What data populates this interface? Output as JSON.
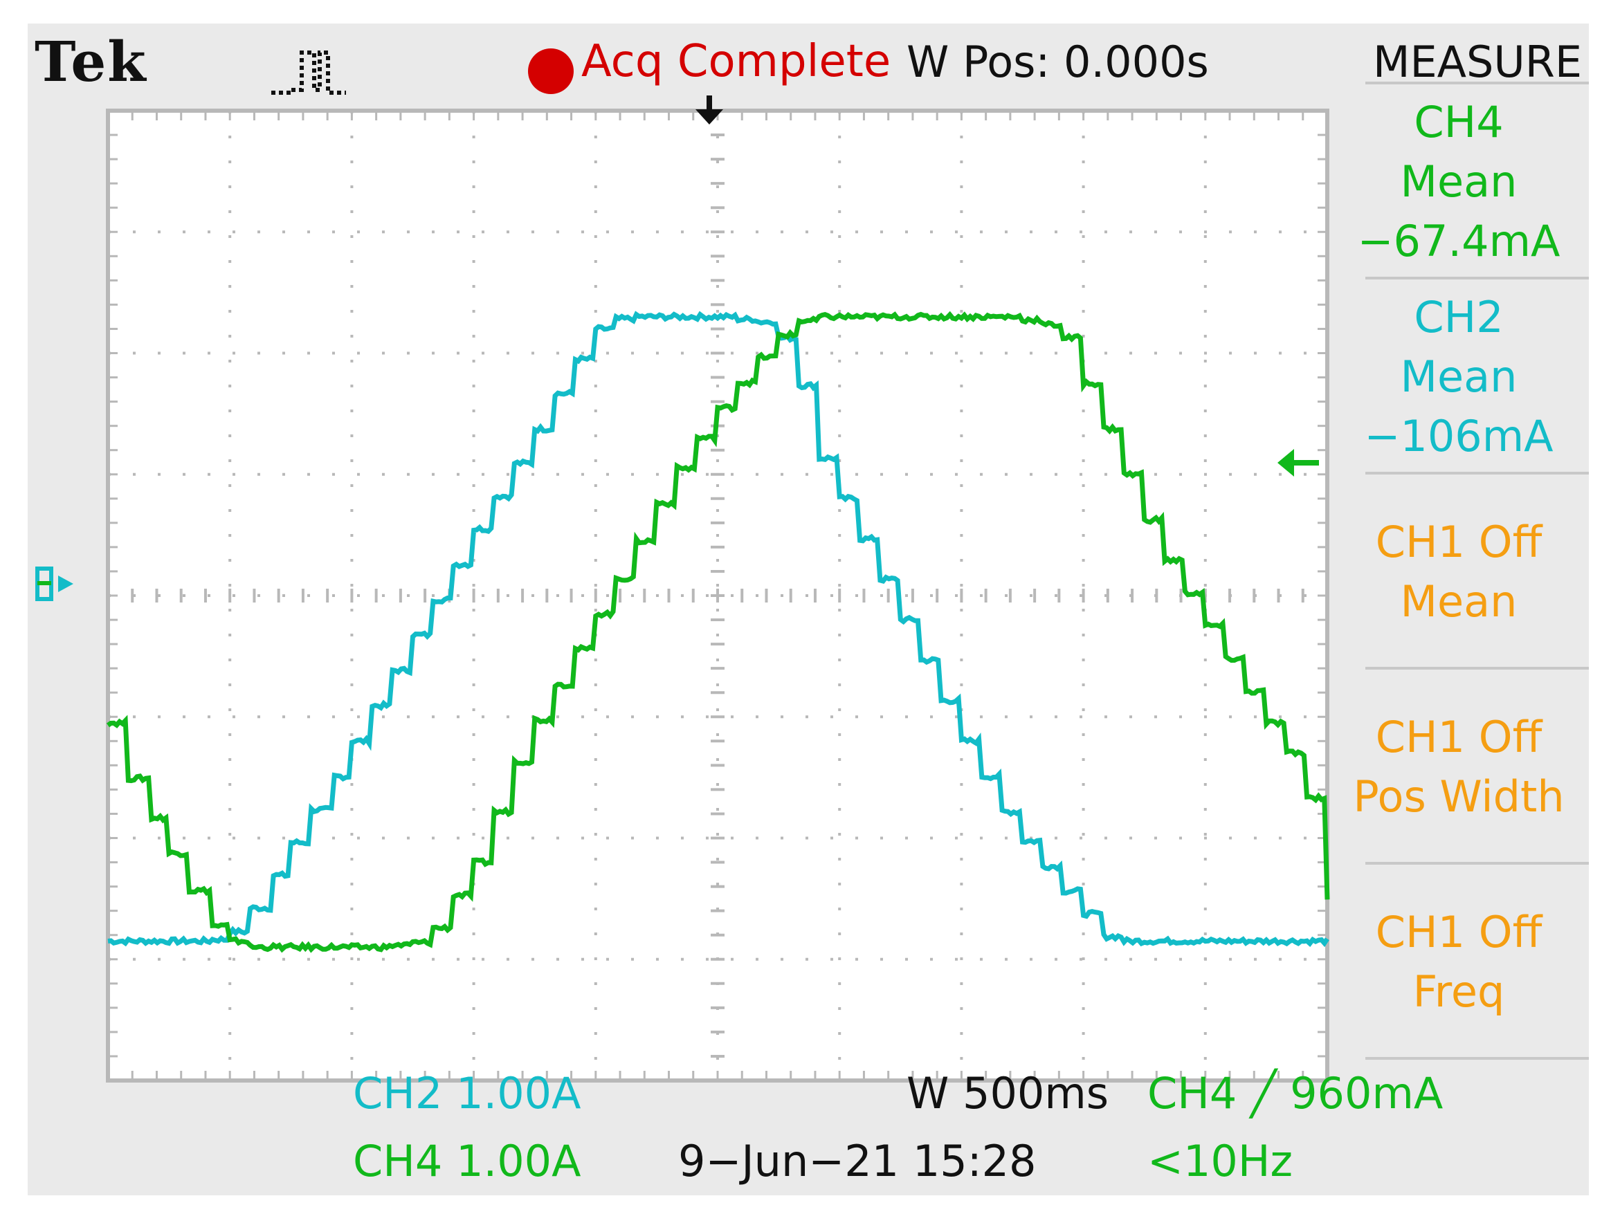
{
  "header": {
    "brand": "Tek",
    "trigger_icon": "pulse-waveform-icon",
    "acq_status": "Acq Complete",
    "horizontal_position": "W Pos: 0.000s",
    "measure_title": "MEASURE"
  },
  "colors": {
    "screen_bg": "#eaeaea",
    "grid": "#b8b8b8",
    "ch2": "#13bcc8",
    "ch4": "#11b81b",
    "ch1": "#f59e12",
    "acq": "#d40000"
  },
  "side_panel": [
    {
      "lines": [
        "CH4",
        "Mean",
        "−67.4mA"
      ],
      "color": "green"
    },
    {
      "lines": [
        "CH2",
        "Mean",
        "−106mA"
      ],
      "color": "cyan"
    },
    {
      "lines": [
        "CH1 Off",
        "Mean"
      ],
      "color": "orange"
    },
    {
      "lines": [
        "CH1 Off",
        "Pos Width"
      ],
      "color": "orange"
    },
    {
      "lines": [
        "CH1 Off",
        "Freq"
      ],
      "color": "orange"
    }
  ],
  "footer": {
    "ch2_scale": "CH2  1.00A",
    "ch4_scale": "CH4  1.00A",
    "timebase": "W 500ms",
    "date": "9−Jun−21 15:28",
    "trigger": "CH4 ╱ 960mA",
    "freq": "<10Hz"
  },
  "chart_data": {
    "type": "line",
    "xlabel": "",
    "ylabel": "",
    "xlim": [
      -2.5,
      2.5
    ],
    "ylim": [
      -4,
      4
    ],
    "x_unit": "s",
    "y_unit": "A",
    "grid": true,
    "h_divisions": 10,
    "v_divisions": 8,
    "ch2_ground_level": 0,
    "trigger_level": 0.96,
    "series": [
      {
        "name": "CH2",
        "color": "#13bcc8",
        "x": [
          -2.5,
          -2.1,
          -1.97,
          -1.8,
          -1.6,
          -1.4,
          -1.2,
          -1.0,
          -0.8,
          -0.6,
          -0.5,
          -0.4,
          -0.2,
          0.0,
          0.2,
          0.3,
          0.4,
          0.6,
          0.8,
          1.0,
          1.2,
          1.4,
          1.6,
          1.8,
          1.9,
          2.0,
          2.2,
          2.5
        ],
        "y": [
          -2.85,
          -2.85,
          -2.75,
          -2.2,
          -1.55,
          -0.85,
          -0.15,
          0.55,
          1.2,
          1.9,
          2.2,
          2.3,
          2.3,
          2.3,
          2.25,
          2.0,
          1.2,
          0.4,
          -0.4,
          -1.2,
          -1.9,
          -2.4,
          -2.85,
          -2.85,
          -2.85,
          -2.85,
          -2.85,
          -2.85
        ]
      },
      {
        "name": "CH4",
        "color": "#11b81b",
        "x": [
          -2.5,
          -2.4,
          -2.2,
          -2.1,
          -2.0,
          -1.97,
          -1.9,
          -1.6,
          -1.4,
          -1.2,
          -1.0,
          -0.8,
          -0.6,
          -0.4,
          -0.2,
          0.0,
          0.2,
          0.3,
          0.4,
          0.6,
          0.8,
          1.0,
          1.2,
          1.4,
          1.6,
          1.8,
          2.0,
          2.2,
          2.4,
          2.5
        ],
        "y": [
          -1.05,
          -1.6,
          -2.3,
          -2.7,
          -2.85,
          -2.9,
          -2.9,
          -2.9,
          -2.9,
          -2.85,
          -2.2,
          -1.2,
          -0.5,
          0.2,
          0.95,
          1.55,
          2.05,
          2.25,
          2.3,
          2.3,
          2.3,
          2.3,
          2.3,
          2.2,
          1.3,
          0.4,
          -0.25,
          -0.9,
          -1.5,
          -2.5
        ]
      }
    ]
  }
}
